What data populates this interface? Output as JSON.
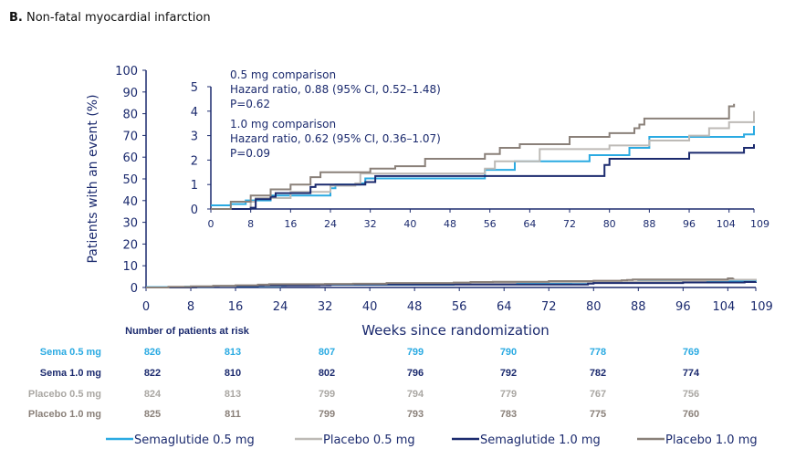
{
  "chart_data": {
    "type": "line",
    "panel": "B.",
    "title": "Non-fatal myocardial infarction",
    "xlabel": "Weeks since randomization",
    "ylabel": "Patients with an event (%)",
    "xlim": [
      0,
      109
    ],
    "ylim": [
      0,
      100
    ],
    "xticks": [
      0,
      8,
      16,
      24,
      32,
      40,
      48,
      56,
      64,
      72,
      80,
      88,
      96,
      104,
      109
    ],
    "yticks": [
      0,
      10,
      20,
      30,
      40,
      50,
      60,
      70,
      80,
      90,
      100
    ],
    "inset": {
      "ylim": [
        0,
        5
      ],
      "yticks": [
        0,
        1,
        2,
        3,
        4,
        5
      ],
      "xticks": [
        0,
        8,
        16,
        24,
        32,
        40,
        48,
        56,
        64,
        72,
        80,
        88,
        96,
        104,
        109
      ]
    },
    "annotations": [
      "0.5 mg comparison",
      "Hazard ratio, 0.88 (95% CI, 0.52–1.48)",
      "P=0.62",
      "1.0 mg comparison",
      "Hazard ratio, 0.62 (95% CI, 0.36–1.07)",
      "P=0.09"
    ],
    "series": [
      {
        "name": "Semaglutide 0.5 mg",
        "color": "#2aaae2",
        "points": [
          [
            0,
            0.15
          ],
          [
            4,
            0.2
          ],
          [
            7,
            0.35
          ],
          [
            12,
            0.55
          ],
          [
            24,
            0.85
          ],
          [
            25,
            1.0
          ],
          [
            30,
            1.05
          ],
          [
            31,
            1.25
          ],
          [
            55,
            1.6
          ],
          [
            61,
            1.95
          ],
          [
            76,
            2.2
          ],
          [
            84,
            2.5
          ],
          [
            88,
            2.95
          ],
          [
            107,
            3.05
          ],
          [
            109,
            3.4
          ]
        ]
      },
      {
        "name": "Placebo 0.5 mg",
        "color": "#bdbab6",
        "points": [
          [
            0,
            0
          ],
          [
            8,
            0.3
          ],
          [
            9,
            0.45
          ],
          [
            16,
            0.7
          ],
          [
            24,
            0.95
          ],
          [
            29,
            1.05
          ],
          [
            30,
            1.45
          ],
          [
            55,
            1.65
          ],
          [
            57,
            1.95
          ],
          [
            66,
            2.45
          ],
          [
            80,
            2.6
          ],
          [
            88,
            2.8
          ],
          [
            96,
            3.0
          ],
          [
            100,
            3.3
          ],
          [
            104,
            3.55
          ],
          [
            109,
            4.0
          ]
        ]
      },
      {
        "name": "Semaglutide 1.0 mg",
        "color": "#1b2a6e",
        "points": [
          [
            0,
            0
          ],
          [
            8,
            0.05
          ],
          [
            9,
            0.4
          ],
          [
            12,
            0.5
          ],
          [
            13,
            0.65
          ],
          [
            20,
            0.9
          ],
          [
            21,
            1.0
          ],
          [
            31,
            1.1
          ],
          [
            33,
            1.35
          ],
          [
            79,
            1.8
          ],
          [
            80,
            2.05
          ],
          [
            96,
            2.3
          ],
          [
            107,
            2.5
          ],
          [
            109,
            2.65
          ]
        ]
      },
      {
        "name": "Placebo 1.0 mg",
        "color": "#8a8079",
        "points": [
          [
            0,
            0
          ],
          [
            4,
            0.3
          ],
          [
            8,
            0.55
          ],
          [
            12,
            0.8
          ],
          [
            16,
            1.0
          ],
          [
            20,
            1.3
          ],
          [
            22,
            1.5
          ],
          [
            32,
            1.65
          ],
          [
            37,
            1.75
          ],
          [
            43,
            2.05
          ],
          [
            55,
            2.25
          ],
          [
            58,
            2.5
          ],
          [
            62,
            2.65
          ],
          [
            72,
            2.95
          ],
          [
            80,
            3.1
          ],
          [
            85,
            3.3
          ],
          [
            86,
            3.45
          ],
          [
            87,
            3.7
          ],
          [
            104,
            4.2
          ],
          [
            105,
            4.3
          ]
        ]
      }
    ],
    "risk_table": {
      "header": "Number of patients at risk",
      "weeks": [
        0,
        16,
        32,
        48,
        64,
        80,
        96
      ],
      "rows": [
        {
          "label": "Sema 0.5 mg",
          "color": "#2aaae2",
          "values": [
            826,
            813,
            807,
            799,
            790,
            778,
            769
          ]
        },
        {
          "label": "Sema 1.0 mg",
          "color": "#1b2a6e",
          "values": [
            822,
            810,
            802,
            796,
            792,
            782,
            774
          ]
        },
        {
          "label": "Placebo 0.5 mg",
          "color": "#aaa7a3",
          "values": [
            824,
            813,
            799,
            794,
            779,
            767,
            756
          ]
        },
        {
          "label": "Placebo 1.0 mg",
          "color": "#8a8079",
          "values": [
            825,
            811,
            799,
            793,
            783,
            775,
            760
          ]
        }
      ]
    }
  }
}
